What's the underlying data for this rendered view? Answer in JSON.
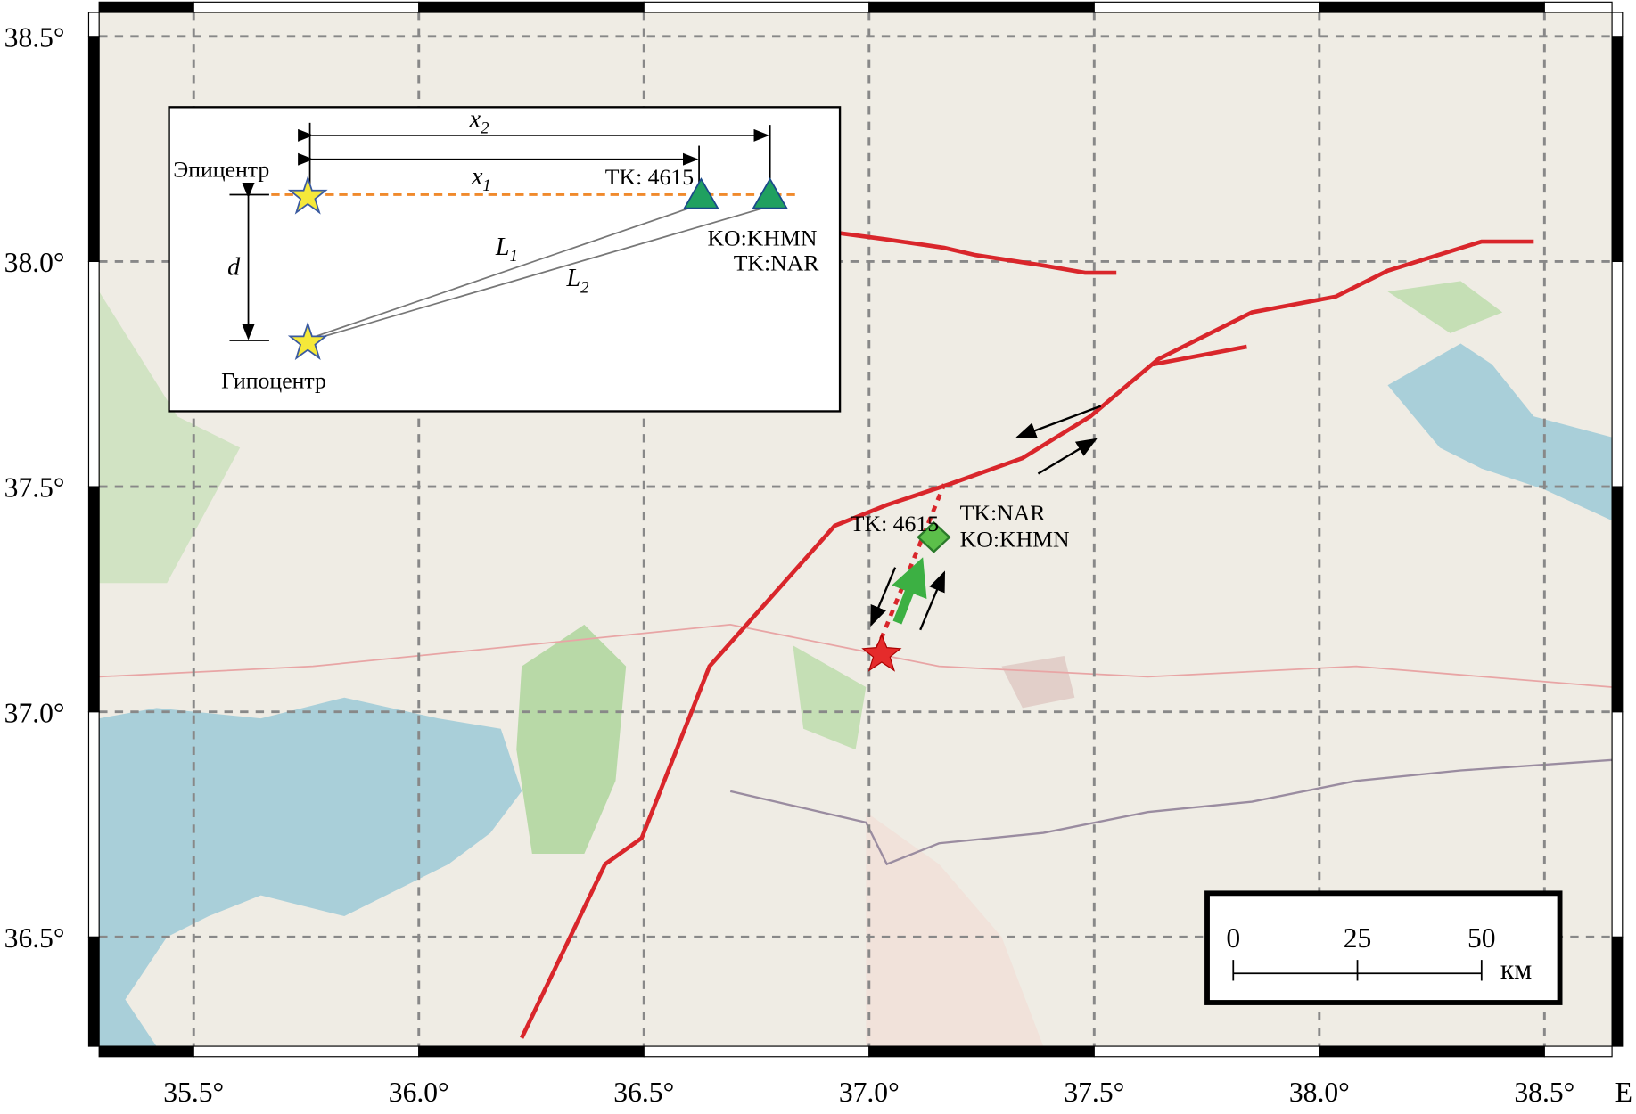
{
  "map": {
    "lon_range": [
      35.29,
      38.65
    ],
    "lat_range": [
      36.257,
      38.553
    ],
    "lon_ticks": [
      {
        "value": 35.5,
        "label": "35.5°"
      },
      {
        "value": 36.0,
        "label": "36.0°"
      },
      {
        "value": 36.5,
        "label": "36.5°"
      },
      {
        "value": 37.0,
        "label": "37.0°"
      },
      {
        "value": 37.5,
        "label": "37.5°"
      },
      {
        "value": 38.0,
        "label": "38.0°"
      },
      {
        "value": 38.5,
        "label": "38.5°"
      }
    ],
    "lat_ticks": [
      {
        "value": 36.5,
        "label": "36.5°"
      },
      {
        "value": 37.0,
        "label": "37.0°"
      },
      {
        "value": 37.5,
        "label": "37.5°"
      },
      {
        "value": 38.0,
        "label": "38.0°"
      },
      {
        "value": 38.5,
        "label": "38.5°"
      }
    ],
    "axis_label": "E",
    "stations": {
      "tk4615": "TK: 4615",
      "tknar": "TK:NAR",
      "kokhmn": "KO:KHMN"
    }
  },
  "inset": {
    "epicenter": "Эпицентр",
    "hypocenter": "Гипоцентр",
    "x2": {
      "base": "x",
      "sub": "2"
    },
    "x1": {
      "base": "x",
      "sub": "1"
    },
    "l1": {
      "base": "L",
      "sub": "1"
    },
    "l2": {
      "base": "L",
      "sub": "2"
    },
    "d": "d",
    "tk4615": "TK: 4615",
    "kokhmn": "KO:KHMN",
    "tknar": "TK:NAR"
  },
  "scale_bar": {
    "ticks": [
      0,
      25,
      50
    ],
    "unit": "км"
  }
}
